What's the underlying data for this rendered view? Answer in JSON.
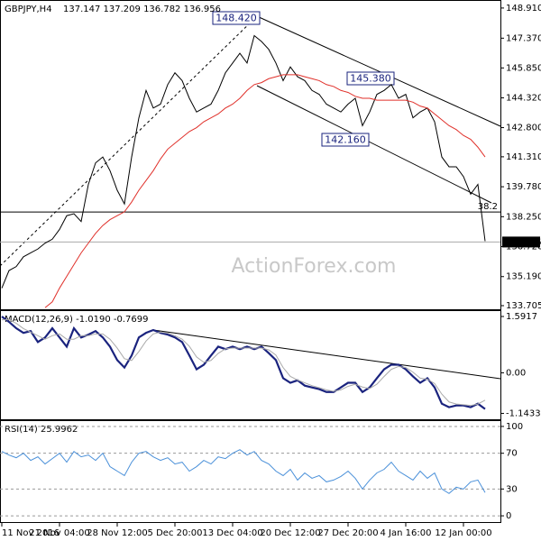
{
  "chart_data": [
    {
      "type": "line",
      "title": "GBPJPY,H4",
      "subtitle": "137.147 137.209 136.782 136.956",
      "watermark": "ActionForex.com",
      "annotations": [
        "148.420",
        "145.380",
        "142.160"
      ],
      "fib_level": {
        "value": 138.49,
        "label": "38.2"
      },
      "last_value": 136.956,
      "ylim": [
        133.52,
        149.32
      ],
      "yticks": [
        {
          "value": 148.91,
          "label": "148.910"
        },
        {
          "value": 147.37,
          "label": "147.370"
        },
        {
          "value": 145.85,
          "label": "145.850"
        },
        {
          "value": 144.32,
          "label": "144.320"
        },
        {
          "value": 142.8,
          "label": "142.800"
        },
        {
          "value": 141.31,
          "label": "141.310"
        },
        {
          "value": 139.78,
          "label": "139.780"
        },
        {
          "value": 138.25,
          "label": "138.250"
        },
        {
          "value": 136.72,
          "label": "136.720"
        },
        {
          "value": 135.19,
          "label": "135.190"
        },
        {
          "value": 133.705,
          "label": "133.705"
        }
      ],
      "grid": false,
      "series": [
        {
          "color": "#000000",
          "values": [
            134.6,
            135.5,
            135.7,
            136.2,
            136.4,
            136.6,
            136.9,
            137.1,
            137.6,
            138.3,
            138.4,
            138.0,
            139.9,
            141.0,
            141.3,
            140.6,
            139.6,
            138.9,
            141.3,
            143.3,
            144.7,
            143.8,
            144.0,
            145.0,
            145.6,
            145.2,
            144.3,
            143.6,
            143.8,
            144.0,
            144.7,
            145.6,
            146.1,
            146.6,
            146.1,
            147.5,
            147.2,
            146.8,
            146.1,
            145.2,
            145.9,
            145.4,
            145.2,
            144.7,
            144.5,
            144.0,
            143.8,
            143.6,
            144.0,
            144.3,
            142.9,
            143.6,
            144.5,
            144.7,
            145.0,
            144.3,
            144.5,
            143.3,
            143.6,
            143.8,
            143.1,
            141.3,
            140.8,
            140.8,
            140.3,
            139.4,
            139.9,
            137.0
          ]
        },
        {
          "color": "#e0302a",
          "values": [
            null,
            null,
            null,
            null,
            null,
            null,
            133.6,
            133.9,
            134.6,
            135.2,
            135.8,
            136.4,
            136.9,
            137.4,
            137.8,
            138.1,
            138.3,
            138.5,
            139.0,
            139.6,
            140.1,
            140.6,
            141.2,
            141.7,
            142.0,
            142.3,
            142.6,
            142.8,
            143.1,
            143.3,
            143.5,
            143.8,
            144.0,
            144.3,
            144.7,
            145.0,
            145.1,
            145.3,
            145.4,
            145.5,
            145.5,
            145.5,
            145.4,
            145.3,
            145.2,
            145.0,
            144.9,
            144.7,
            144.6,
            144.4,
            144.3,
            144.3,
            144.2,
            144.2,
            144.2,
            144.2,
            144.2,
            144.1,
            143.9,
            143.8,
            143.5,
            143.2,
            142.9,
            142.7,
            142.4,
            142.2,
            141.8,
            141.3
          ]
        }
      ]
    },
    {
      "type": "line",
      "title": "MACD(12,26,9) -1.0190 -0.7699",
      "ylim": [
        -1.31,
        1.77
      ],
      "yticks": [
        1.5917,
        {
          "value": 0,
          "label": "0.00"
        },
        -1.1433
      ],
      "grid": false,
      "series": [
        {
          "color": "#1a237e",
          "values": [
            1.59,
            1.44,
            1.26,
            1.13,
            1.18,
            0.87,
            1.0,
            1.26,
            1.0,
            0.74,
            1.26,
            1.0,
            1.08,
            1.18,
            1.0,
            0.74,
            0.36,
            0.15,
            0.49,
            1.0,
            1.13,
            1.21,
            1.13,
            1.08,
            1.0,
            0.87,
            0.49,
            0.1,
            0.23,
            0.49,
            0.74,
            0.67,
            0.74,
            0.67,
            0.74,
            0.67,
            0.74,
            0.56,
            0.36,
            -0.15,
            -0.28,
            -0.21,
            -0.36,
            -0.41,
            -0.46,
            -0.54,
            -0.54,
            -0.41,
            -0.28,
            -0.28,
            -0.54,
            -0.41,
            -0.15,
            0.1,
            0.23,
            0.23,
            0.1,
            -0.1,
            -0.28,
            -0.15,
            -0.41,
            -0.87,
            -0.97,
            -0.92,
            -0.92,
            -0.97,
            -0.87,
            -1.02
          ]
        },
        {
          "color": "#aaaaaa",
          "values": [
            1.5,
            1.5,
            1.4,
            1.25,
            1.15,
            1.05,
            0.95,
            1.05,
            1.1,
            0.95,
            0.95,
            1.05,
            1.05,
            1.1,
            1.1,
            0.95,
            0.7,
            0.4,
            0.35,
            0.6,
            0.9,
            1.1,
            1.15,
            1.12,
            1.05,
            0.95,
            0.75,
            0.45,
            0.3,
            0.35,
            0.55,
            0.68,
            0.7,
            0.7,
            0.7,
            0.7,
            0.7,
            0.65,
            0.5,
            0.15,
            -0.1,
            -0.2,
            -0.28,
            -0.36,
            -0.42,
            -0.48,
            -0.52,
            -0.48,
            -0.38,
            -0.32,
            -0.4,
            -0.44,
            -0.32,
            -0.1,
            0.1,
            0.18,
            0.15,
            0.02,
            -0.15,
            -0.18,
            -0.3,
            -0.6,
            -0.82,
            -0.88,
            -0.9,
            -0.92,
            -0.88,
            -0.77
          ]
        }
      ]
    },
    {
      "type": "line",
      "title": "RSI(14) 25.9962",
      "ylim": [
        -8,
        107
      ],
      "yticks": [
        100,
        70,
        30,
        0
      ],
      "grid": true,
      "categories": [
        "11 Nov 2016",
        null,
        null,
        null,
        null,
        null,
        null,
        null,
        "21 Nov 04:00",
        null,
        null,
        null,
        null,
        null,
        null,
        null,
        "28 Nov 12:00",
        null,
        null,
        null,
        null,
        null,
        null,
        null,
        "5 Dec 20:00",
        null,
        null,
        null,
        null,
        null,
        null,
        null,
        "13 Dec 04:00",
        null,
        null,
        null,
        null,
        null,
        null,
        null,
        "20 Dec 12:00",
        null,
        null,
        null,
        null,
        null,
        null,
        null,
        "27 Dec 20:00",
        null,
        null,
        null,
        null,
        null,
        null,
        null,
        "4 Jan 16:00",
        null,
        null,
        null,
        null,
        null,
        null,
        null,
        "12 Jan 00:00",
        null,
        null,
        null
      ],
      "series": [
        {
          "color": "#4a90d9",
          "values": [
            72,
            68,
            65,
            70,
            62,
            66,
            58,
            64,
            70,
            60,
            72,
            66,
            68,
            62,
            70,
            55,
            50,
            45,
            60,
            70,
            72,
            66,
            62,
            65,
            58,
            60,
            50,
            55,
            62,
            58,
            66,
            64,
            70,
            74,
            68,
            72,
            62,
            58,
            50,
            45,
            52,
            40,
            48,
            42,
            45,
            38,
            40,
            44,
            50,
            42,
            30,
            40,
            48,
            52,
            60,
            50,
            45,
            40,
            50,
            42,
            48,
            30,
            25,
            32,
            30,
            38,
            40,
            26
          ]
        }
      ]
    }
  ]
}
